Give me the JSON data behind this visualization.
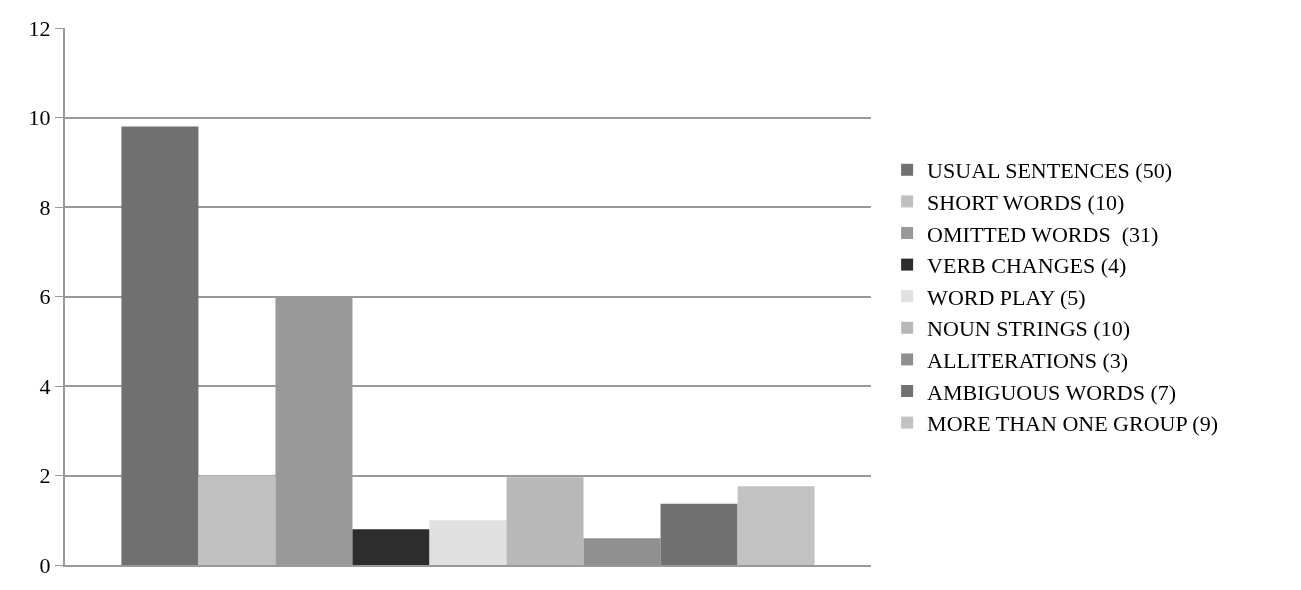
{
  "chart_data": {
    "type": "bar",
    "categories": [
      null
    ],
    "series": [
      {
        "name": "USUAL SENTENCES (50)",
        "color": "#707070",
        "values": [
          9.8
        ]
      },
      {
        "name": "SHORT WORDS (10)",
        "color": "#c0c0c0",
        "values": [
          2.0
        ]
      },
      {
        "name": "OMITTED WORDS  (31)",
        "color": "#999999",
        "values": [
          6.0
        ]
      },
      {
        "name": "VERB CHANGES (4)",
        "color": "#2d2d2d",
        "values": [
          0.8
        ]
      },
      {
        "name": "WORD PLAY (5)",
        "color": "#e0e0e0",
        "values": [
          1.0
        ]
      },
      {
        "name": "NOUN STRINGS (10)",
        "color": "#b8b8b8",
        "values": [
          1.96
        ]
      },
      {
        "name": "ALLITERATIONS (3)",
        "color": "#8f8f8f",
        "values": [
          0.6
        ]
      },
      {
        "name": "AMBIGUOUS WORDS (7)",
        "color": "#717171",
        "values": [
          1.37
        ]
      },
      {
        "name": "MORE THAN ONE GROUP (9)",
        "color": "#c2c2c2",
        "values": [
          1.76
        ]
      }
    ],
    "ylim": [
      0,
      12
    ],
    "yticks": [
      0,
      2,
      4,
      6,
      8,
      10,
      12
    ],
    "grid": "y",
    "legend": "right"
  }
}
